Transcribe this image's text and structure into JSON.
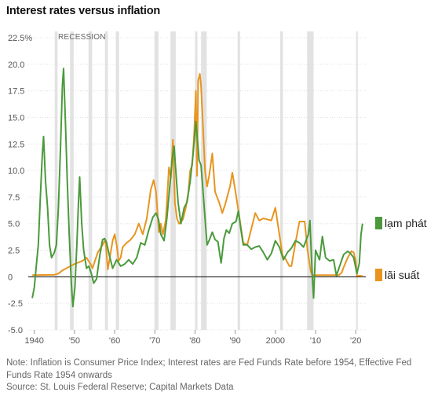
{
  "title": "Interest rates versus inflation",
  "recession_label": "RECESSION",
  "note_line1": "Note: Inflation is Consumer Price Index; Interest rates are Fed Funds Rate before 1954, Effective Fed Funds Rate 1954 onwards",
  "source": "Source: St. Louis Federal Reserve; Capital Markets Data",
  "colors": {
    "inflation": "#4a9a3c",
    "interest": "#e8951f",
    "recession": "#e2e2e2",
    "zero_line": "#000000",
    "grid": "#e0e0e0"
  },
  "chart_data": {
    "type": "line",
    "title": "Interest rates versus inflation",
    "xlim": [
      1938.5,
      2022.5
    ],
    "ylim": [
      -5,
      22.5
    ],
    "grid": true,
    "legend_position": "right",
    "yticks": [
      {
        "value": 22.5,
        "label": "22.5%"
      },
      {
        "value": 20,
        "label": "20.0"
      },
      {
        "value": 17.5,
        "label": "17.5"
      },
      {
        "value": 15,
        "label": "15.0"
      },
      {
        "value": 12.5,
        "label": "12.5"
      },
      {
        "value": 10,
        "label": "10.0"
      },
      {
        "value": 7.5,
        "label": "7.5"
      },
      {
        "value": 5,
        "label": "5.0"
      },
      {
        "value": 2.5,
        "label": "2.5"
      },
      {
        "value": 0,
        "label": "0"
      },
      {
        "value": -2.5,
        "label": "-2.5"
      },
      {
        "value": -5,
        "label": "-5.0"
      }
    ],
    "xticks": [
      {
        "value": 1940,
        "label": "1940"
      },
      {
        "value": 1950,
        "label": "'50"
      },
      {
        "value": 1960,
        "label": "'60"
      },
      {
        "value": 1970,
        "label": "'70"
      },
      {
        "value": 1980,
        "label": "'80"
      },
      {
        "value": 1990,
        "label": "'90"
      },
      {
        "value": 2000,
        "label": "2000"
      },
      {
        "value": 2010,
        "label": "'10"
      },
      {
        "value": 2020,
        "label": "'20"
      }
    ],
    "recessions": [
      [
        1945.1,
        1945.8
      ],
      [
        1948.9,
        1949.8
      ],
      [
        1953.5,
        1954.4
      ],
      [
        1957.6,
        1958.3
      ],
      [
        1960.3,
        1961.1
      ],
      [
        1969.9,
        1970.9
      ],
      [
        1973.9,
        1975.2
      ],
      [
        1980.0,
        1980.6
      ],
      [
        1981.5,
        1982.9
      ],
      [
        1990.6,
        1991.2
      ],
      [
        2001.2,
        2001.9
      ],
      [
        2007.9,
        2009.5
      ],
      [
        2020.1,
        2020.5
      ]
    ],
    "series": [
      {
        "name": "lạm phát",
        "points": [
          [
            1939.5,
            -2.0
          ],
          [
            1940,
            -1.0
          ],
          [
            1940.5,
            1.0
          ],
          [
            1941,
            3.0
          ],
          [
            1941.5,
            7.5
          ],
          [
            1942,
            11.5
          ],
          [
            1942.3,
            13.2
          ],
          [
            1942.8,
            9.0
          ],
          [
            1943.3,
            6.5
          ],
          [
            1943.8,
            3.0
          ],
          [
            1944.3,
            1.8
          ],
          [
            1945,
            2.3
          ],
          [
            1945.5,
            3.0
          ],
          [
            1946,
            6.5
          ],
          [
            1946.5,
            12.0
          ],
          [
            1947,
            18.0
          ],
          [
            1947.3,
            19.6
          ],
          [
            1947.8,
            14.0
          ],
          [
            1948.2,
            9.0
          ],
          [
            1948.7,
            4.0
          ],
          [
            1949.2,
            -0.5
          ],
          [
            1949.6,
            -2.8
          ],
          [
            1950.1,
            -1.0
          ],
          [
            1950.6,
            3.0
          ],
          [
            1951,
            7.0
          ],
          [
            1951.3,
            9.4
          ],
          [
            1951.8,
            5.0
          ],
          [
            1952.3,
            2.5
          ],
          [
            1953,
            0.8
          ],
          [
            1953.6,
            1.0
          ],
          [
            1954.2,
            0.3
          ],
          [
            1954.8,
            -0.6
          ],
          [
            1955.5,
            -0.2
          ],
          [
            1956.3,
            2.0
          ],
          [
            1957,
            3.5
          ],
          [
            1957.5,
            3.6
          ],
          [
            1958,
            3.2
          ],
          [
            1958.7,
            2.0
          ],
          [
            1959.5,
            0.8
          ],
          [
            1960.5,
            1.6
          ],
          [
            1961.5,
            1.0
          ],
          [
            1962.5,
            1.2
          ],
          [
            1963.5,
            1.6
          ],
          [
            1964.5,
            1.2
          ],
          [
            1965.5,
            1.8
          ],
          [
            1966.5,
            3.2
          ],
          [
            1967.5,
            3.0
          ],
          [
            1968.5,
            4.4
          ],
          [
            1969.5,
            5.6
          ],
          [
            1970.3,
            6.0
          ],
          [
            1970.9,
            5.4
          ],
          [
            1971.5,
            4.0
          ],
          [
            1972.3,
            3.4
          ],
          [
            1973,
            5.5
          ],
          [
            1973.6,
            8.0
          ],
          [
            1974.3,
            11.0
          ],
          [
            1974.8,
            12.3
          ],
          [
            1975.3,
            9.5
          ],
          [
            1975.8,
            7.0
          ],
          [
            1976.5,
            5.0
          ],
          [
            1977.3,
            6.5
          ],
          [
            1978,
            7.0
          ],
          [
            1978.8,
            9.0
          ],
          [
            1979.5,
            11.5
          ],
          [
            1980.2,
            14.6
          ],
          [
            1980.6,
            13.0
          ],
          [
            1981,
            11.0
          ],
          [
            1981.5,
            10.5
          ],
          [
            1982,
            8.0
          ],
          [
            1982.6,
            5.0
          ],
          [
            1983,
            3.0
          ],
          [
            1983.6,
            3.5
          ],
          [
            1984.3,
            4.2
          ],
          [
            1985,
            3.5
          ],
          [
            1985.7,
            3.3
          ],
          [
            1986.5,
            1.3
          ],
          [
            1987.2,
            3.6
          ],
          [
            1987.8,
            4.4
          ],
          [
            1988.5,
            4.1
          ],
          [
            1989.3,
            5.0
          ],
          [
            1990.2,
            5.2
          ],
          [
            1990.8,
            6.2
          ],
          [
            1991.4,
            4.5
          ],
          [
            1992,
            3.0
          ],
          [
            1993,
            3.0
          ],
          [
            1994,
            2.6
          ],
          [
            1995,
            2.8
          ],
          [
            1996,
            2.9
          ],
          [
            1997,
            2.3
          ],
          [
            1998,
            1.6
          ],
          [
            1999,
            2.2
          ],
          [
            2000,
            3.4
          ],
          [
            2001,
            2.8
          ],
          [
            2002,
            1.6
          ],
          [
            2003,
            2.3
          ],
          [
            2004,
            2.7
          ],
          [
            2005,
            3.4
          ],
          [
            2006,
            3.2
          ],
          [
            2007,
            2.8
          ],
          [
            2008.2,
            4.0
          ],
          [
            2008.6,
            5.3
          ],
          [
            2009.2,
            0.0
          ],
          [
            2009.5,
            -2.0
          ],
          [
            2010,
            2.5
          ],
          [
            2011,
            1.6
          ],
          [
            2011.7,
            3.8
          ],
          [
            2012.5,
            1.8
          ],
          [
            2013.5,
            1.5
          ],
          [
            2014.5,
            1.6
          ],
          [
            2015.2,
            0.1
          ],
          [
            2016,
            1.0
          ],
          [
            2017,
            2.1
          ],
          [
            2018,
            2.4
          ],
          [
            2018.7,
            2.2
          ],
          [
            2019.5,
            1.8
          ],
          [
            2020.3,
            0.3
          ],
          [
            2020.9,
            1.3
          ],
          [
            2021.3,
            4.0
          ],
          [
            2021.7,
            5.0
          ]
        ]
      },
      {
        "name": "lãi suất",
        "points": [
          [
            1939.5,
            0.15
          ],
          [
            1945,
            0.2
          ],
          [
            1946,
            0.3
          ],
          [
            1947,
            0.6
          ],
          [
            1948,
            0.8
          ],
          [
            1950,
            1.2
          ],
          [
            1952,
            1.5
          ],
          [
            1953,
            1.8
          ],
          [
            1954,
            1.2
          ],
          [
            1954.5,
            0.8
          ],
          [
            1955,
            1.4
          ],
          [
            1955.8,
            2.3
          ],
          [
            1957,
            3.0
          ],
          [
            1957.7,
            3.5
          ],
          [
            1958.3,
            0.7
          ],
          [
            1958.8,
            1.8
          ],
          [
            1959.5,
            3.4
          ],
          [
            1960,
            4.0
          ],
          [
            1960.5,
            3.0
          ],
          [
            1961,
            1.5
          ],
          [
            1961.5,
            1.8
          ],
          [
            1962,
            2.8
          ],
          [
            1963,
            3.2
          ],
          [
            1964,
            3.5
          ],
          [
            1965,
            4.0
          ],
          [
            1966,
            5.0
          ],
          [
            1967,
            4.0
          ],
          [
            1968,
            5.5
          ],
          [
            1969,
            8.2
          ],
          [
            1969.7,
            9.1
          ],
          [
            1970.3,
            8.0
          ],
          [
            1971,
            4.2
          ],
          [
            1971.5,
            5.0
          ],
          [
            1972,
            4.0
          ],
          [
            1972.7,
            5.3
          ],
          [
            1973,
            7.0
          ],
          [
            1973.5,
            10.3
          ],
          [
            1974,
            9.3
          ],
          [
            1974.5,
            12.9
          ],
          [
            1975,
            7.0
          ],
          [
            1975.5,
            5.5
          ],
          [
            1976,
            5.0
          ],
          [
            1977,
            5.4
          ],
          [
            1977.7,
            6.5
          ],
          [
            1978.3,
            7.8
          ],
          [
            1978.8,
            10.0
          ],
          [
            1979.3,
            10.5
          ],
          [
            1979.8,
            13.5
          ],
          [
            1980.2,
            17.5
          ],
          [
            1980.5,
            9.5
          ],
          [
            1980.8,
            18.5
          ],
          [
            1981.2,
            19.1
          ],
          [
            1981.5,
            18.0
          ],
          [
            1982,
            14.0
          ],
          [
            1982.5,
            10.0
          ],
          [
            1983,
            8.5
          ],
          [
            1983.5,
            9.5
          ],
          [
            1984.3,
            11.6
          ],
          [
            1985,
            8.0
          ],
          [
            1986,
            7.0
          ],
          [
            1986.8,
            6.0
          ],
          [
            1987.5,
            6.8
          ],
          [
            1988,
            7.5
          ],
          [
            1988.7,
            8.5
          ],
          [
            1989.3,
            9.8
          ],
          [
            1990,
            8.2
          ],
          [
            1991,
            5.7
          ],
          [
            1992,
            3.2
          ],
          [
            1993,
            3.0
          ],
          [
            1994,
            4.5
          ],
          [
            1995,
            6.0
          ],
          [
            1996,
            5.3
          ],
          [
            1997,
            5.5
          ],
          [
            1998,
            5.4
          ],
          [
            1999,
            5.3
          ],
          [
            2000,
            6.5
          ],
          [
            2001,
            4.0
          ],
          [
            2001.8,
            2.0
          ],
          [
            2002.5,
            1.7
          ],
          [
            2003.5,
            1.0
          ],
          [
            2004,
            1.0
          ],
          [
            2005,
            3.2
          ],
          [
            2006,
            5.2
          ],
          [
            2007.3,
            5.2
          ],
          [
            2008,
            2.5
          ],
          [
            2008.8,
            0.5
          ],
          [
            2009.2,
            0.15
          ],
          [
            2015.8,
            0.15
          ],
          [
            2016.5,
            0.4
          ],
          [
            2017,
            0.9
          ],
          [
            2018,
            1.8
          ],
          [
            2018.9,
            2.4
          ],
          [
            2019.5,
            2.3
          ],
          [
            2020,
            1.5
          ],
          [
            2020.3,
            0.1
          ],
          [
            2021.7,
            0.08
          ]
        ]
      }
    ]
  }
}
